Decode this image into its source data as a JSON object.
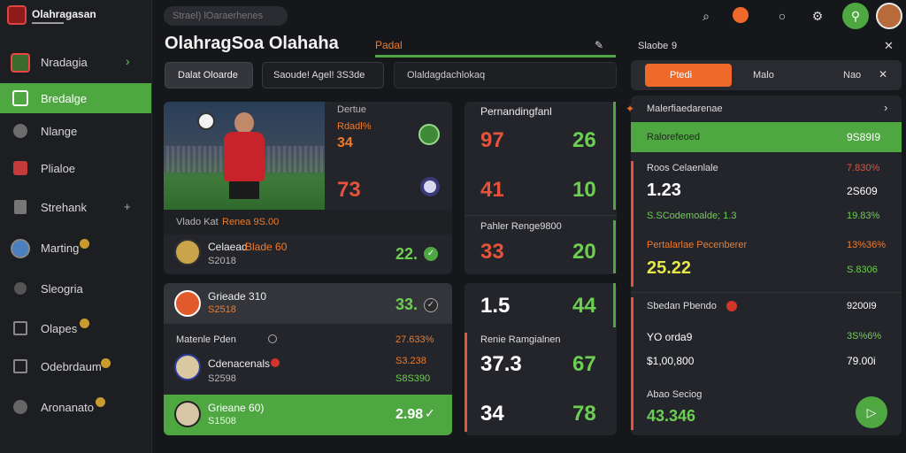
{
  "app": {
    "title": "Olahragasan"
  },
  "search": {
    "placeholder": "Strael) lOaraerhenes"
  },
  "sidebar": {
    "items": [
      {
        "label": "Nradagia",
        "icon": "club-crest-icon",
        "color": "#3a6b2f"
      },
      {
        "label": "Bredalge",
        "icon": "square-icon",
        "color": "#ffffff"
      },
      {
        "label": "Nlange",
        "icon": "user-icon",
        "color": "#8a8a8a"
      },
      {
        "label": "Plialoe",
        "icon": "flag-icon",
        "color": "#c43b3b"
      },
      {
        "label": "Strehank",
        "icon": "tower-icon",
        "color": "#8a8a8a"
      },
      {
        "label": "Marting",
        "icon": "globe-icon",
        "color": "#4c7fbf",
        "badge": ""
      },
      {
        "label": "Sleogria",
        "icon": "star-icon",
        "color": "#8a8a8a"
      },
      {
        "label": "Olapes",
        "icon": "box-icon",
        "color": "#8a8a8a",
        "badge": ""
      },
      {
        "label": "Odebrdaum",
        "icon": "trophy-icon",
        "color": "#8a8a8a",
        "badge": ""
      },
      {
        "label": "Aronanato",
        "icon": "ball-icon",
        "color": "#8a8a8a",
        "badge": ""
      }
    ]
  },
  "header": {
    "page_title": "OlahragSoa Olahaha",
    "tag": "Padal",
    "tabs": [
      "Dalat Oloarde",
      "Saoude! Agel! 3S3de",
      "Olaldagdachlokaq"
    ]
  },
  "feature": {
    "label_top": "Dertue",
    "label_top_value": "Rdadl%",
    "score1": "34",
    "score2": "73",
    "caption": "Vlado Kat",
    "caption_value": "Renea 9S.00",
    "player_name": "Celaead",
    "player_name_value": "Blade 60",
    "player_sub": "S2018",
    "player_score": "22."
  },
  "stats_top": {
    "title": "Pernandingfanl",
    "rows": [
      {
        "a": "97",
        "b": "26"
      },
      {
        "a": "41",
        "b": "10"
      }
    ],
    "sub_title": "Pahler Renge9800",
    "row3": {
      "a": "33",
      "b": "20"
    }
  },
  "list_card": {
    "row1": {
      "name": "Grieade 310",
      "sub": "S2518",
      "score": "33."
    },
    "section": "Matenle Pden",
    "section_value": "27.633%",
    "row2": {
      "name": "Cdenacenals",
      "sub": "S2598",
      "value": "S3.238",
      "value2": "S8S390"
    },
    "row3": {
      "name": "Grieane 60)",
      "sub": "S1508",
      "score": "2.98"
    }
  },
  "stats_bottom": {
    "row1": {
      "a": "1.5",
      "b": "44"
    },
    "title": "Renie Ramgialnen",
    "row2": {
      "a": "37.3",
      "b": "67"
    },
    "row3": {
      "a": "34",
      "b": "78"
    }
  },
  "right": {
    "header": "Slaobe",
    "header_tag": "9",
    "tabs": [
      "Ptedi",
      "Malo",
      "Nao"
    ],
    "section_title": "Malerfiaedarenae",
    "highlight": {
      "label": "Ralorefeoed",
      "value": "9S89I9"
    },
    "block1": {
      "title": "Roos Celaenlale",
      "title_value": "7.830%",
      "value": "1.23",
      "value_right": "2S609",
      "line": "S.SCodemoalde; 1.3",
      "line_right": "19.83%"
    },
    "block2": {
      "title": "Pertalarlae Pecenberer",
      "title_value": "13%36%",
      "value": "25.22",
      "value_right": "S.8306"
    },
    "block3": {
      "title": "Sbedan Pbendo",
      "title_value": "9200I9",
      "value1": "YO orda9",
      "value1_right": "3S%6%",
      "value2": "$1,00,800",
      "value2_right": "79.00i",
      "footer_label": "Abao Seciog",
      "footer_value": "43.346"
    }
  },
  "colors": {
    "accent_green": "#4ea741",
    "accent_orange": "#ef6a2a",
    "accent_red": "#e5533a"
  }
}
